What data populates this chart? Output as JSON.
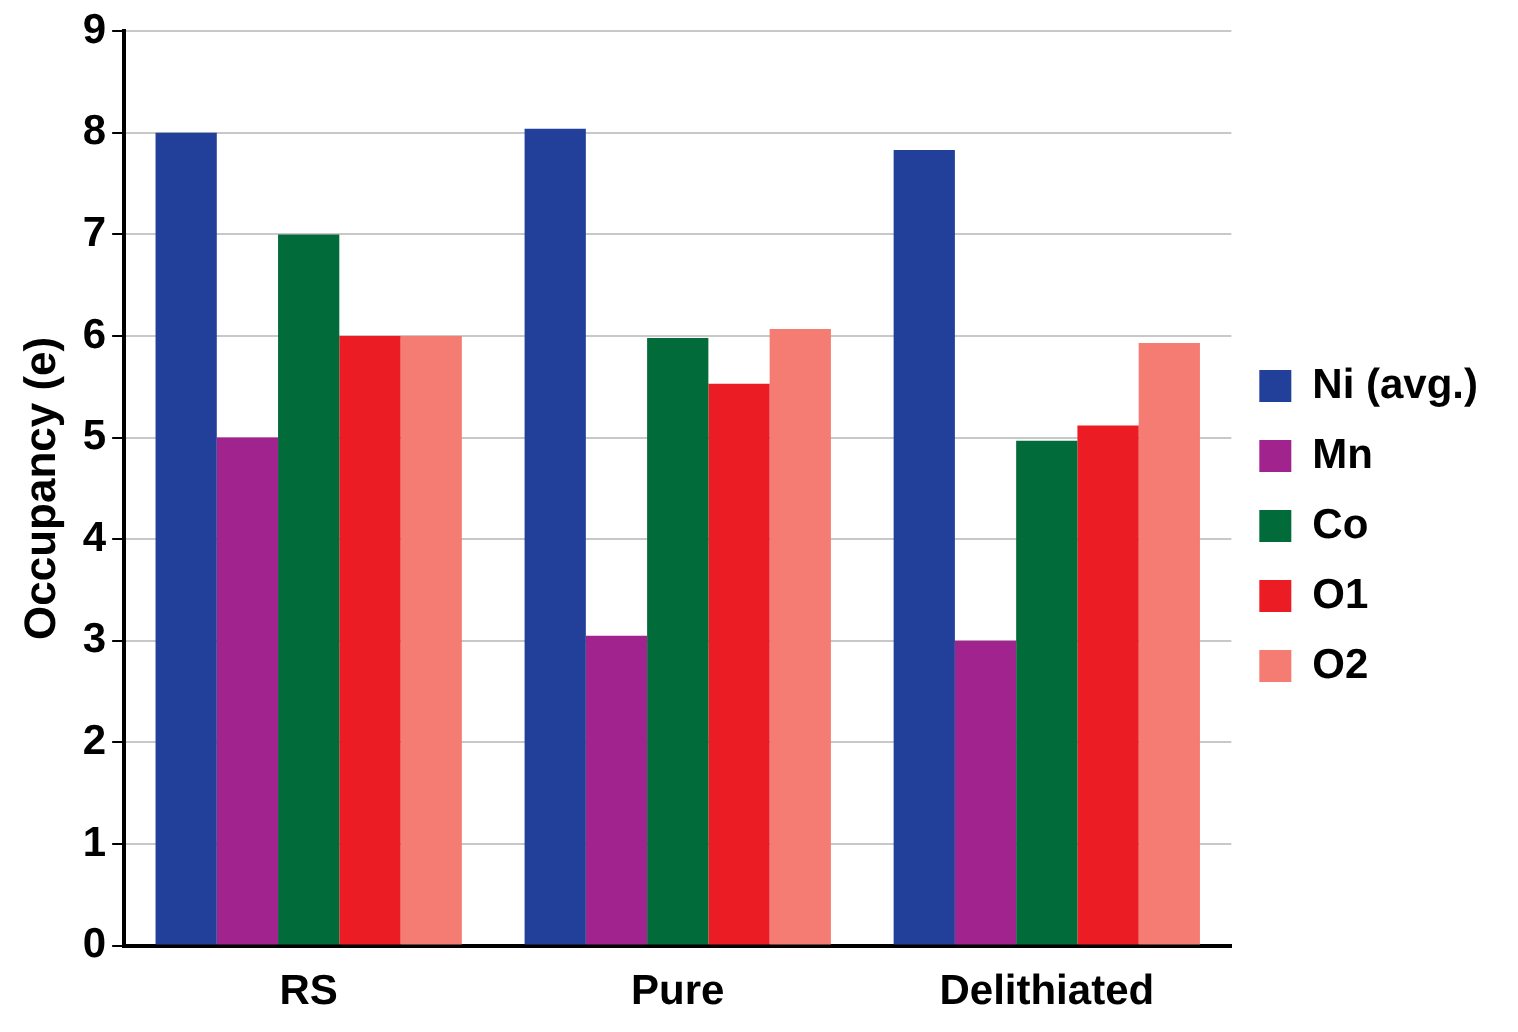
{
  "chart_data": {
    "type": "bar",
    "ylabel": "Occupancy (e)",
    "categories": [
      "RS",
      "Pure",
      "Delithiated"
    ],
    "series": [
      {
        "name": "Ni (avg.)",
        "color": "#22409a",
        "values": [
          8,
          8.04,
          7.83
        ]
      },
      {
        "name": "Mn",
        "color": "#a0238e",
        "values": [
          5,
          3.05,
          3.0
        ]
      },
      {
        "name": "Co",
        "color": "#026b3a",
        "values": [
          7,
          5.98,
          4.97
        ]
      },
      {
        "name": "O1",
        "color": "#ec1c24",
        "values": [
          6,
          5.53,
          5.12
        ]
      },
      {
        "name": "O2",
        "color": "#f47c72",
        "values": [
          6,
          6.07,
          5.93
        ]
      }
    ],
    "ylim": [
      0,
      9
    ],
    "yticks": [
      0,
      1,
      2,
      3,
      4,
      5,
      6,
      7,
      8,
      9
    ],
    "grid": "y",
    "legend": "right"
  }
}
